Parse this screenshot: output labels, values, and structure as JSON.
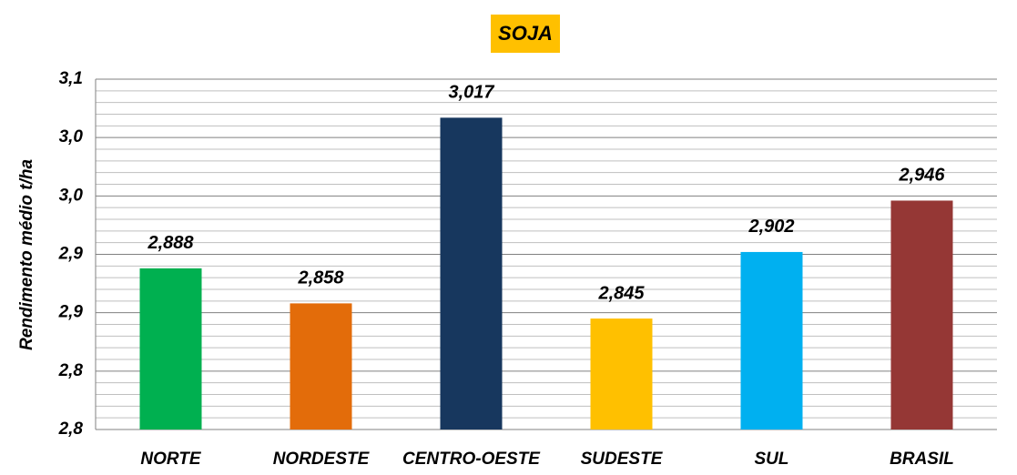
{
  "chart_data": {
    "type": "bar",
    "title": "SOJA",
    "y_label": "Rendimento médio t/ha",
    "categories": [
      "NORTE",
      "NORDESTE",
      "CENTRO-OESTE",
      "SUDESTE",
      "SUL",
      "BRASIL"
    ],
    "values": [
      2.888,
      2.858,
      3.017,
      2.845,
      2.902,
      2.946
    ],
    "value_labels": [
      "2,888",
      "2,858",
      "3,017",
      "2,845",
      "2,902",
      "2,946"
    ],
    "colors": [
      "#00b050",
      "#e36c0a",
      "#17375e",
      "#ffc000",
      "#00b0f0",
      "#953735"
    ],
    "ylim": [
      2.75,
      3.05
    ],
    "yticks": [
      {
        "value": 2.75,
        "label": "2,8"
      },
      {
        "value": 2.8,
        "label": "2,8"
      },
      {
        "value": 2.85,
        "label": "2,9"
      },
      {
        "value": 2.9,
        "label": "2,9"
      },
      {
        "value": 2.95,
        "label": "3,0"
      },
      {
        "value": 3.0,
        "label": "3,0"
      },
      {
        "value": 3.05,
        "label": "3,1"
      }
    ],
    "minor_yticks": [
      2.76,
      2.77,
      2.78,
      2.79,
      2.81,
      2.82,
      2.83,
      2.84,
      2.86,
      2.87,
      2.88,
      2.89,
      2.91,
      2.92,
      2.93,
      2.94,
      2.96,
      2.97,
      2.98,
      2.99,
      3.01,
      3.02,
      3.03,
      3.04
    ],
    "grid": true
  }
}
